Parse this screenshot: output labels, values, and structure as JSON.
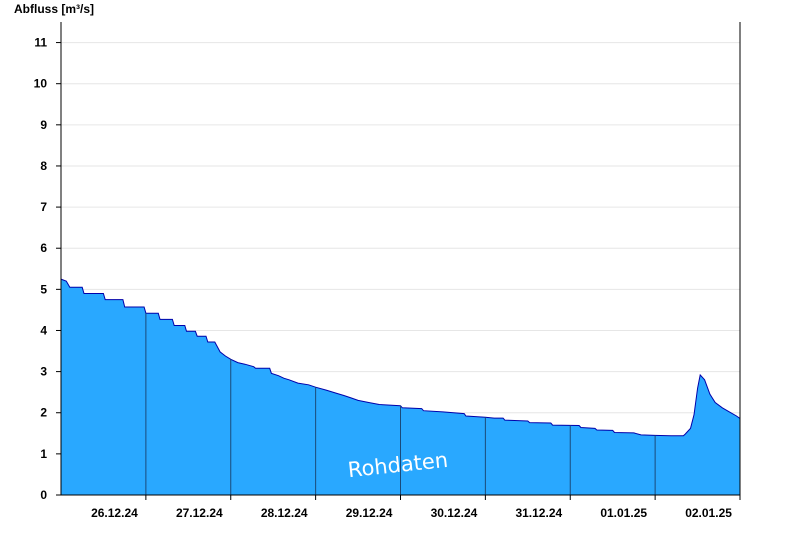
{
  "chart_data": {
    "type": "area",
    "ylabel": "Abfluss [m³/s]",
    "watermark": "Rohdaten",
    "ylim": [
      0,
      11.5
    ],
    "yticks": [
      0,
      1,
      2,
      3,
      4,
      5,
      6,
      7,
      8,
      9,
      10,
      11
    ],
    "xlim": [
      "2024-12-25T12:00",
      "2025-01-02T12:00"
    ],
    "day_dividers": [
      "2024-12-26T12:00",
      "2024-12-27T12:00",
      "2024-12-28T12:00",
      "2024-12-29T12:00",
      "2024-12-30T12:00",
      "2024-12-31T12:00",
      "2025-01-01T12:00",
      "2025-01-02T12:00"
    ],
    "xtick_labels": [
      {
        "date": "2024-12-26T00:00",
        "label": "26.12.24"
      },
      {
        "date": "2024-12-27T00:00",
        "label": "27.12.24"
      },
      {
        "date": "2024-12-28T00:00",
        "label": "28.12.24"
      },
      {
        "date": "2024-12-29T00:00",
        "label": "29.12.24"
      },
      {
        "date": "2024-12-30T00:00",
        "label": "30.12.24"
      },
      {
        "date": "2024-12-31T00:00",
        "label": "31.12.24"
      },
      {
        "date": "2025-01-01T00:00",
        "label": "01.01.25"
      },
      {
        "date": "2025-01-02T00:00",
        "label": "02.01.25"
      }
    ],
    "grid": true,
    "colors": {
      "fill": "#29a8ff",
      "line": "#0000aa",
      "grid": "#e6e6e6",
      "axis": "#000000",
      "divider": "#1a4a7a"
    },
    "series": [
      {
        "points": [
          [
            "2024-12-25T12:00",
            5.25
          ],
          [
            "2024-12-25T13:30",
            5.2
          ],
          [
            "2024-12-25T14:30",
            5.05
          ],
          [
            "2024-12-25T18:00",
            5.05
          ],
          [
            "2024-12-25T18:30",
            4.9
          ],
          [
            "2024-12-26T00:00",
            4.9
          ],
          [
            "2024-12-26T00:30",
            4.75
          ],
          [
            "2024-12-26T05:30",
            4.75
          ],
          [
            "2024-12-26T06:00",
            4.57
          ],
          [
            "2024-12-26T11:30",
            4.57
          ],
          [
            "2024-12-26T12:00",
            4.42
          ],
          [
            "2024-12-26T15:30",
            4.42
          ],
          [
            "2024-12-26T16:00",
            4.27
          ],
          [
            "2024-12-26T19:30",
            4.27
          ],
          [
            "2024-12-26T20:00",
            4.12
          ],
          [
            "2024-12-26T23:00",
            4.12
          ],
          [
            "2024-12-26T23:30",
            3.98
          ],
          [
            "2024-12-27T02:00",
            3.98
          ],
          [
            "2024-12-27T02:30",
            3.86
          ],
          [
            "2024-12-27T05:00",
            3.86
          ],
          [
            "2024-12-27T05:30",
            3.72
          ],
          [
            "2024-12-27T07:30",
            3.72
          ],
          [
            "2024-12-27T09:00",
            3.48
          ],
          [
            "2024-12-27T10:30",
            3.38
          ],
          [
            "2024-12-27T12:00",
            3.3
          ],
          [
            "2024-12-27T14:00",
            3.22
          ],
          [
            "2024-12-27T16:00",
            3.18
          ],
          [
            "2024-12-27T18:30",
            3.12
          ],
          [
            "2024-12-27T19:00",
            3.08
          ],
          [
            "2024-12-27T23:00",
            3.08
          ],
          [
            "2024-12-27T23:30",
            2.96
          ],
          [
            "2024-12-28T01:30",
            2.9
          ],
          [
            "2024-12-28T03:00",
            2.84
          ],
          [
            "2024-12-28T04:30",
            2.8
          ],
          [
            "2024-12-28T07:00",
            2.72
          ],
          [
            "2024-12-28T10:00",
            2.68
          ],
          [
            "2024-12-28T12:00",
            2.62
          ],
          [
            "2024-12-28T15:00",
            2.55
          ],
          [
            "2024-12-28T18:00",
            2.47
          ],
          [
            "2024-12-28T20:00",
            2.42
          ],
          [
            "2024-12-28T22:00",
            2.36
          ],
          [
            "2024-12-29T00:00",
            2.3
          ],
          [
            "2024-12-29T03:00",
            2.25
          ],
          [
            "2024-12-29T06:00",
            2.2
          ],
          [
            "2024-12-29T12:00",
            2.17
          ],
          [
            "2024-12-29T12:30",
            2.12
          ],
          [
            "2024-12-29T18:00",
            2.1
          ],
          [
            "2024-12-29T18:30",
            2.05
          ],
          [
            "2024-12-30T00:00",
            2.02
          ],
          [
            "2024-12-30T06:00",
            1.98
          ],
          [
            "2024-12-30T06:30",
            1.92
          ],
          [
            "2024-12-30T12:00",
            1.89
          ],
          [
            "2024-12-30T14:30",
            1.87
          ],
          [
            "2024-12-30T17:00",
            1.87
          ],
          [
            "2024-12-30T17:30",
            1.82
          ],
          [
            "2024-12-31T00:00",
            1.8
          ],
          [
            "2024-12-31T00:30",
            1.76
          ],
          [
            "2024-12-31T06:30",
            1.75
          ],
          [
            "2024-12-31T07:00",
            1.7
          ],
          [
            "2024-12-31T14:30",
            1.69
          ],
          [
            "2024-12-31T15:00",
            1.64
          ],
          [
            "2024-12-31T19:00",
            1.62
          ],
          [
            "2024-12-31T19:30",
            1.58
          ],
          [
            "2025-01-01T00:00",
            1.57
          ],
          [
            "2025-01-01T00:30",
            1.52
          ],
          [
            "2025-01-01T06:00",
            1.51
          ],
          [
            "2025-01-01T08:00",
            1.46
          ],
          [
            "2025-01-01T12:00",
            1.45
          ],
          [
            "2025-01-01T16:30",
            1.44
          ],
          [
            "2025-01-01T20:00",
            1.44
          ],
          [
            "2025-01-01T20:30",
            1.48
          ],
          [
            "2025-01-01T22:00",
            1.62
          ],
          [
            "2025-01-01T23:00",
            1.95
          ],
          [
            "2025-01-02T00:00",
            2.6
          ],
          [
            "2025-01-02T00:45",
            2.92
          ],
          [
            "2025-01-02T02:00",
            2.8
          ],
          [
            "2025-01-02T03:30",
            2.45
          ],
          [
            "2025-01-02T05:00",
            2.25
          ],
          [
            "2025-01-02T07:00",
            2.12
          ],
          [
            "2025-01-02T09:00",
            2.02
          ],
          [
            "2025-01-02T11:00",
            1.92
          ],
          [
            "2025-01-02T12:00",
            1.86
          ]
        ]
      }
    ]
  }
}
